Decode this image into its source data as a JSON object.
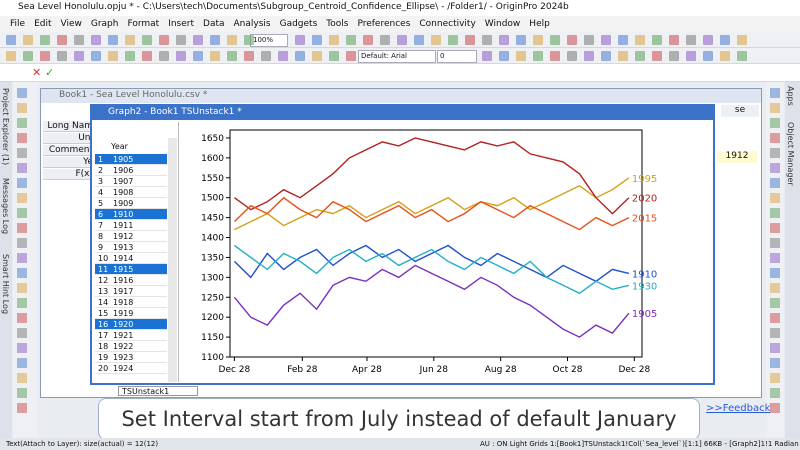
{
  "window_title": "Sea Level Honolulu.opju * - C:\\Users\\tech\\Documents\\Subgroup_Centroid_Confidence_Ellipse\\ - /Folder1/ - OriginPro 2024b",
  "menu": [
    "File",
    "Edit",
    "View",
    "Graph",
    "Format",
    "Insert",
    "Data",
    "Analysis",
    "Gadgets",
    "Tools",
    "Preferences",
    "Connectivity",
    "Window",
    "Help"
  ],
  "toolbar": {
    "zoom": "100%",
    "font": "Default: Arial",
    "size": "0"
  },
  "side_tabs_left": [
    "Project Explorer (1)",
    "Messages Log",
    "Smart Hint Log"
  ],
  "side_tabs_right": [
    "Apps",
    "Object Manager"
  ],
  "book_window": {
    "title": "Book1 - Sea Level Honolulu.csv *",
    "row_headers": [
      "Long Nam",
      "Uni",
      "Comment",
      "Ye",
      "F(x)"
    ],
    "cell": "1912",
    "col_header": "se"
  },
  "graph_window": {
    "title": "Graph2 - Book1 TSUnstack1 *",
    "tab": "TSUnstack1",
    "list_header": "Year",
    "rows": [
      {
        "index": 1,
        "year": 1905,
        "selected": true
      },
      {
        "index": 2,
        "year": 1906,
        "selected": false
      },
      {
        "index": 3,
        "year": 1907,
        "selected": false
      },
      {
        "index": 4,
        "year": 1908,
        "selected": false
      },
      {
        "index": 5,
        "year": 1909,
        "selected": false
      },
      {
        "index": 6,
        "year": 1910,
        "selected": true
      },
      {
        "index": 7,
        "year": 1911,
        "selected": false
      },
      {
        "index": 8,
        "year": 1912,
        "selected": false
      },
      {
        "index": 9,
        "year": 1913,
        "selected": false
      },
      {
        "index": 10,
        "year": 1914,
        "selected": false
      },
      {
        "index": 11,
        "year": 1915,
        "selected": true
      },
      {
        "index": 12,
        "year": 1916,
        "selected": false
      },
      {
        "index": 13,
        "year": 1917,
        "selected": false
      },
      {
        "index": 14,
        "year": 1918,
        "selected": false
      },
      {
        "index": 15,
        "year": 1919,
        "selected": false
      },
      {
        "index": 16,
        "year": 1920,
        "selected": true
      },
      {
        "index": 17,
        "year": 1921,
        "selected": false
      },
      {
        "index": 18,
        "year": 1922,
        "selected": false
      },
      {
        "index": 19,
        "year": 1923,
        "selected": false
      },
      {
        "index": 20,
        "year": 1924,
        "selected": false
      }
    ]
  },
  "chart_data": {
    "type": "line",
    "x": [
      0,
      15,
      30,
      45,
      60,
      75,
      90,
      105,
      120,
      135,
      150,
      165,
      180,
      195,
      210,
      225,
      240,
      255,
      270,
      285,
      300,
      315,
      330,
      345,
      360
    ],
    "xlim": [
      -4,
      372
    ],
    "xticks": [
      {
        "value": 0,
        "label": "Dec 28"
      },
      {
        "value": 62,
        "label": "Feb 28"
      },
      {
        "value": 121,
        "label": "Apr 28"
      },
      {
        "value": 182,
        "label": "Jun 28"
      },
      {
        "value": 243,
        "label": "Aug 28"
      },
      {
        "value": 304,
        "label": "Oct 28"
      },
      {
        "value": 365,
        "label": "Dec 28"
      }
    ],
    "ylim": [
      1100,
      1670
    ],
    "yticks": [
      1100,
      1150,
      1200,
      1250,
      1300,
      1350,
      1400,
      1450,
      1500,
      1550,
      1600,
      1650
    ],
    "series": [
      {
        "name": "1995",
        "color": "#d4a017",
        "values": [
          1420,
          1440,
          1460,
          1430,
          1450,
          1470,
          1460,
          1480,
          1450,
          1470,
          1490,
          1460,
          1480,
          1500,
          1470,
          1490,
          1480,
          1500,
          1470,
          1490,
          1510,
          1530,
          1500,
          1520,
          1550
        ]
      },
      {
        "name": "2020",
        "color": "#b22222",
        "values": [
          1500,
          1470,
          1490,
          1520,
          1500,
          1530,
          1560,
          1600,
          1620,
          1640,
          1630,
          1650,
          1640,
          1630,
          1620,
          1640,
          1630,
          1640,
          1610,
          1600,
          1590,
          1560,
          1500,
          1460,
          1500
        ]
      },
      {
        "name": "2015",
        "color": "#e8501a",
        "values": [
          1440,
          1480,
          1460,
          1500,
          1470,
          1450,
          1490,
          1470,
          1440,
          1460,
          1480,
          1450,
          1470,
          1440,
          1460,
          1490,
          1470,
          1450,
          1480,
          1460,
          1440,
          1420,
          1450,
          1430,
          1450
        ]
      },
      {
        "name": "1910",
        "color": "#2050d0",
        "values": [
          1340,
          1300,
          1360,
          1320,
          1350,
          1370,
          1330,
          1360,
          1380,
          1350,
          1370,
          1340,
          1360,
          1380,
          1350,
          1330,
          1360,
          1340,
          1320,
          1300,
          1330,
          1310,
          1290,
          1320,
          1310
        ]
      },
      {
        "name": "1930",
        "color": "#20b0c8",
        "values": [
          1380,
          1350,
          1320,
          1360,
          1340,
          1310,
          1350,
          1370,
          1340,
          1360,
          1330,
          1350,
          1370,
          1340,
          1320,
          1350,
          1330,
          1310,
          1340,
          1300,
          1280,
          1260,
          1290,
          1270,
          1280
        ]
      },
      {
        "name": "1905",
        "color": "#7b2fbe",
        "values": [
          1250,
          1200,
          1180,
          1230,
          1260,
          1220,
          1280,
          1300,
          1290,
          1320,
          1300,
          1330,
          1310,
          1290,
          1270,
          1300,
          1280,
          1250,
          1230,
          1200,
          1170,
          1150,
          1180,
          1160,
          1210
        ]
      }
    ]
  },
  "caption": "Set Interval start from July instead of default January",
  "feedback": ">>Feedback",
  "status": {
    "left": "Text(Attach to Layer): size(actual) = 12(12)",
    "right": "AU : ON  Light Grids  1:[Book1]TSUnstack1!Col(`Sea_level`)[1:1]  66KB - [Graph2]1!1  Radian"
  }
}
